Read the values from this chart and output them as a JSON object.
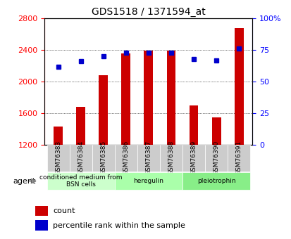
{
  "title": "GDS1518 / 1371594_at",
  "samples": [
    "GSM76383",
    "GSM76384",
    "GSM76385",
    "GSM76386",
    "GSM76387",
    "GSM76388",
    "GSM76389",
    "GSM76390",
    "GSM76391"
  ],
  "counts": [
    1430,
    1680,
    2080,
    2360,
    2390,
    2390,
    1700,
    1550,
    2680
  ],
  "percentiles": [
    62,
    66,
    70,
    73,
    73,
    73,
    68,
    67,
    76
  ],
  "groups": [
    {
      "label": "conditioned medium from\nBSN cells",
      "start": 0,
      "end": 3,
      "color": "#ccffcc"
    },
    {
      "label": "heregulin",
      "start": 3,
      "end": 6,
      "color": "#aaffaa"
    },
    {
      "label": "pleiotrophin",
      "start": 6,
      "end": 9,
      "color": "#88ee88"
    }
  ],
  "ylim_left": [
    1200,
    2800
  ],
  "ylim_right": [
    0,
    100
  ],
  "left_ticks": [
    1200,
    1600,
    2000,
    2400,
    2800
  ],
  "right_ticks": [
    0,
    25,
    50,
    75,
    100
  ],
  "right_tick_labels": [
    "0",
    "25",
    "50",
    "75",
    "100%"
  ],
  "bar_color": "#cc0000",
  "dot_color": "#0000cc",
  "bg_color": "#dddddd",
  "plot_bg_color": "#ffffff",
  "agent_label": "agent",
  "legend_count_label": "count",
  "legend_pct_label": "percentile rank within the sample"
}
